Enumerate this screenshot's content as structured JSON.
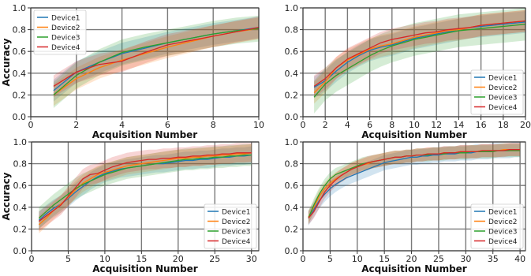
{
  "colors": {
    "Device1": "#1f77b4",
    "Device2": "#ff7f0e",
    "Device3": "#2ca02c",
    "Device4": "#d62728"
  },
  "chart_data": [
    {
      "type": "line",
      "xlabel": "Acquisition Number",
      "ylabel": "Accuracy",
      "xlim": [
        0,
        10
      ],
      "ylim": [
        0,
        1.0
      ],
      "xticks": [
        0,
        2,
        4,
        6,
        8,
        10
      ],
      "yticks": [
        0.0,
        0.2,
        0.4,
        0.6,
        0.8,
        1.0
      ],
      "grid": true,
      "legend": "top-left",
      "x": [
        1,
        2,
        3,
        4,
        5,
        6,
        7,
        8,
        9,
        10
      ],
      "series": [
        {
          "name": "Device1",
          "values": [
            0.24,
            0.41,
            0.5,
            0.58,
            0.63,
            0.68,
            0.72,
            0.76,
            0.79,
            0.82
          ],
          "band": 0.1
        },
        {
          "name": "Device2",
          "values": [
            0.2,
            0.35,
            0.45,
            0.52,
            0.58,
            0.64,
            0.69,
            0.74,
            0.78,
            0.81
          ],
          "band": 0.1
        },
        {
          "name": "Device3",
          "values": [
            0.2,
            0.38,
            0.5,
            0.59,
            0.64,
            0.68,
            0.72,
            0.76,
            0.79,
            0.81
          ],
          "band": 0.12
        },
        {
          "name": "Device4",
          "values": [
            0.28,
            0.41,
            0.48,
            0.51,
            0.59,
            0.66,
            0.7,
            0.74,
            0.78,
            0.82
          ],
          "band": 0.1
        }
      ]
    },
    {
      "type": "line",
      "xlabel": "Acquisition Number",
      "ylabel": "",
      "xlim": [
        0,
        20
      ],
      "ylim": [
        0,
        1.0
      ],
      "xticks": [
        0,
        2,
        4,
        6,
        8,
        10,
        12,
        14,
        16,
        18,
        20
      ],
      "yticks": [
        0.0,
        0.2,
        0.4,
        0.6,
        0.8,
        1.0
      ],
      "grid": true,
      "legend": "bottom-right",
      "x": [
        1,
        2,
        3,
        4,
        5,
        6,
        7,
        8,
        9,
        10,
        11,
        12,
        13,
        14,
        15,
        16,
        17,
        18,
        19,
        20
      ],
      "series": [
        {
          "name": "Device1",
          "values": [
            0.27,
            0.33,
            0.42,
            0.5,
            0.56,
            0.61,
            0.64,
            0.66,
            0.69,
            0.72,
            0.74,
            0.76,
            0.78,
            0.8,
            0.82,
            0.83,
            0.84,
            0.85,
            0.86,
            0.87
          ],
          "band": 0.1
        },
        {
          "name": "Device2",
          "values": [
            0.22,
            0.32,
            0.45,
            0.52,
            0.57,
            0.62,
            0.65,
            0.67,
            0.7,
            0.73,
            0.75,
            0.77,
            0.79,
            0.8,
            0.82,
            0.84,
            0.85,
            0.86,
            0.87,
            0.88
          ],
          "band": 0.1
        },
        {
          "name": "Device3",
          "values": [
            0.18,
            0.3,
            0.38,
            0.44,
            0.5,
            0.56,
            0.61,
            0.65,
            0.68,
            0.71,
            0.73,
            0.75,
            0.77,
            0.79,
            0.8,
            0.81,
            0.82,
            0.83,
            0.84,
            0.85
          ],
          "band": 0.15
        },
        {
          "name": "Device4",
          "values": [
            0.28,
            0.35,
            0.45,
            0.53,
            0.58,
            0.63,
            0.68,
            0.71,
            0.73,
            0.75,
            0.77,
            0.78,
            0.8,
            0.81,
            0.82,
            0.84,
            0.85,
            0.86,
            0.87,
            0.88
          ],
          "band": 0.1
        }
      ]
    },
    {
      "type": "line",
      "xlabel": "Acquisition Number",
      "ylabel": "Accuracy",
      "xlim": [
        0,
        31
      ],
      "ylim": [
        0,
        1.0
      ],
      "xticks": [
        0,
        5,
        10,
        15,
        20,
        25,
        30
      ],
      "yticks": [
        0.0,
        0.2,
        0.4,
        0.6,
        0.8,
        1.0
      ],
      "grid": true,
      "legend": "bottom-right",
      "x": [
        1,
        2,
        3,
        4,
        5,
        6,
        7,
        8,
        9,
        10,
        11,
        12,
        13,
        14,
        15,
        16,
        17,
        18,
        19,
        20,
        21,
        22,
        23,
        24,
        25,
        26,
        27,
        28,
        29,
        30
      ],
      "series": [
        {
          "name": "Device1",
          "values": [
            0.28,
            0.34,
            0.39,
            0.43,
            0.48,
            0.54,
            0.59,
            0.64,
            0.68,
            0.71,
            0.73,
            0.75,
            0.76,
            0.77,
            0.78,
            0.79,
            0.8,
            0.8,
            0.81,
            0.82,
            0.83,
            0.83,
            0.84,
            0.84,
            0.85,
            0.86,
            0.86,
            0.87,
            0.87,
            0.88
          ],
          "band": 0.08
        },
        {
          "name": "Device2",
          "values": [
            0.24,
            0.3,
            0.37,
            0.43,
            0.49,
            0.56,
            0.62,
            0.66,
            0.7,
            0.72,
            0.74,
            0.76,
            0.78,
            0.79,
            0.8,
            0.81,
            0.82,
            0.83,
            0.84,
            0.85,
            0.85,
            0.86,
            0.86,
            0.87,
            0.87,
            0.88,
            0.88,
            0.89,
            0.89,
            0.9
          ],
          "band": 0.08
        },
        {
          "name": "Device3",
          "values": [
            0.3,
            0.36,
            0.42,
            0.47,
            0.52,
            0.57,
            0.61,
            0.64,
            0.67,
            0.7,
            0.72,
            0.74,
            0.76,
            0.77,
            0.78,
            0.79,
            0.8,
            0.81,
            0.82,
            0.83,
            0.84,
            0.84,
            0.85,
            0.85,
            0.86,
            0.86,
            0.87,
            0.87,
            0.88,
            0.88
          ],
          "band": 0.1
        },
        {
          "name": "Device4",
          "values": [
            0.27,
            0.32,
            0.37,
            0.42,
            0.5,
            0.58,
            0.66,
            0.7,
            0.71,
            0.74,
            0.77,
            0.79,
            0.81,
            0.82,
            0.83,
            0.84,
            0.84,
            0.85,
            0.85,
            0.86,
            0.86,
            0.87,
            0.87,
            0.88,
            0.88,
            0.89,
            0.89,
            0.9,
            0.9,
            0.9
          ],
          "band": 0.09
        }
      ]
    },
    {
      "type": "line",
      "xlabel": "Acquisition Number",
      "ylabel": "",
      "xlim": [
        0,
        41
      ],
      "ylim": [
        0,
        1.0
      ],
      "xticks": [
        0,
        5,
        10,
        15,
        20,
        25,
        30,
        35,
        40
      ],
      "yticks": [
        0.0,
        0.2,
        0.4,
        0.6,
        0.8,
        1.0
      ],
      "grid": true,
      "legend": "bottom-right",
      "x": [
        1,
        2,
        3,
        4,
        5,
        6,
        7,
        8,
        9,
        10,
        11,
        12,
        13,
        14,
        15,
        16,
        17,
        18,
        19,
        20,
        21,
        22,
        23,
        24,
        25,
        26,
        27,
        28,
        29,
        30,
        31,
        32,
        33,
        34,
        35,
        36,
        37,
        38,
        39,
        40
      ],
      "series": [
        {
          "name": "Device1",
          "values": [
            0.3,
            0.38,
            0.46,
            0.52,
            0.57,
            0.61,
            0.64,
            0.67,
            0.69,
            0.71,
            0.73,
            0.75,
            0.77,
            0.79,
            0.81,
            0.82,
            0.83,
            0.84,
            0.85,
            0.86,
            0.86,
            0.87,
            0.87,
            0.88,
            0.88,
            0.89,
            0.89,
            0.89,
            0.9,
            0.9,
            0.9,
            0.91,
            0.91,
            0.91,
            0.92,
            0.92,
            0.92,
            0.92,
            0.93,
            0.93
          ],
          "band": 0.07
        },
        {
          "name": "Device2",
          "values": [
            0.31,
            0.4,
            0.5,
            0.57,
            0.62,
            0.66,
            0.69,
            0.72,
            0.75,
            0.77,
            0.79,
            0.8,
            0.82,
            0.83,
            0.84,
            0.85,
            0.86,
            0.86,
            0.87,
            0.87,
            0.88,
            0.88,
            0.89,
            0.89,
            0.89,
            0.9,
            0.9,
            0.9,
            0.91,
            0.91,
            0.91,
            0.91,
            0.92,
            0.92,
            0.92,
            0.92,
            0.93,
            0.93,
            0.93,
            0.93
          ],
          "band": 0.06
        },
        {
          "name": "Device3",
          "values": [
            0.3,
            0.42,
            0.52,
            0.6,
            0.66,
            0.7,
            0.72,
            0.74,
            0.76,
            0.78,
            0.8,
            0.81,
            0.82,
            0.83,
            0.84,
            0.85,
            0.86,
            0.86,
            0.87,
            0.87,
            0.88,
            0.88,
            0.88,
            0.89,
            0.89,
            0.89,
            0.9,
            0.9,
            0.9,
            0.9,
            0.91,
            0.91,
            0.91,
            0.91,
            0.91,
            0.92,
            0.92,
            0.92,
            0.92,
            0.92
          ],
          "band": 0.06
        },
        {
          "name": "Device4",
          "values": [
            0.3,
            0.36,
            0.45,
            0.54,
            0.6,
            0.65,
            0.69,
            0.72,
            0.75,
            0.77,
            0.79,
            0.81,
            0.82,
            0.83,
            0.84,
            0.85,
            0.86,
            0.86,
            0.87,
            0.87,
            0.88,
            0.88,
            0.89,
            0.89,
            0.89,
            0.9,
            0.9,
            0.9,
            0.91,
            0.91,
            0.91,
            0.91,
            0.92,
            0.92,
            0.92,
            0.92,
            0.92,
            0.93,
            0.93,
            0.93
          ],
          "band": 0.06
        }
      ]
    }
  ]
}
